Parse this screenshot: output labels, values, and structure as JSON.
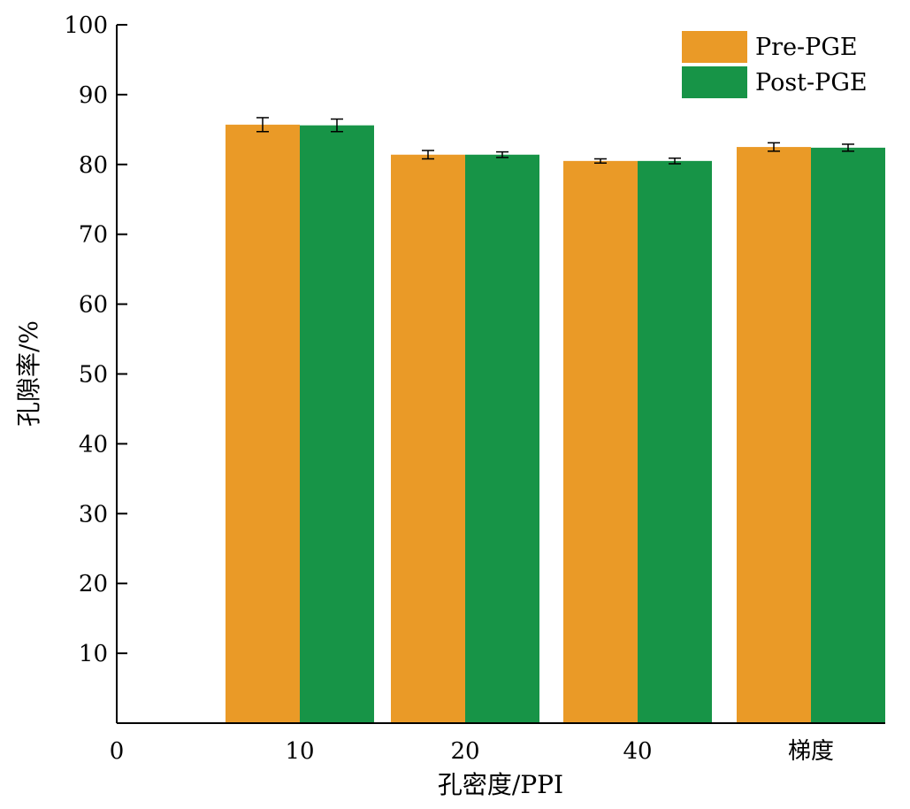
{
  "chart_data": {
    "type": "bar",
    "title": "",
    "xlabel": "孔密度/PPI",
    "ylabel": "孔隙率/%",
    "x_origin_label": "0",
    "categories": [
      "10",
      "20",
      "40",
      "梯度"
    ],
    "ylim": [
      0,
      100
    ],
    "yticks": [
      10,
      20,
      30,
      40,
      50,
      60,
      70,
      80,
      90,
      100
    ],
    "grid": false,
    "legend_position": "top-right",
    "series": [
      {
        "name": "Pre-PGE",
        "color": "#EA9A27",
        "values": [
          85.7,
          81.4,
          80.5,
          82.5
        ],
        "errors": [
          1.0,
          0.6,
          0.3,
          0.6
        ]
      },
      {
        "name": "Post-PGE",
        "color": "#179447",
        "values": [
          85.6,
          81.4,
          80.5,
          82.4
        ],
        "errors": [
          0.9,
          0.4,
          0.4,
          0.5
        ]
      }
    ]
  }
}
